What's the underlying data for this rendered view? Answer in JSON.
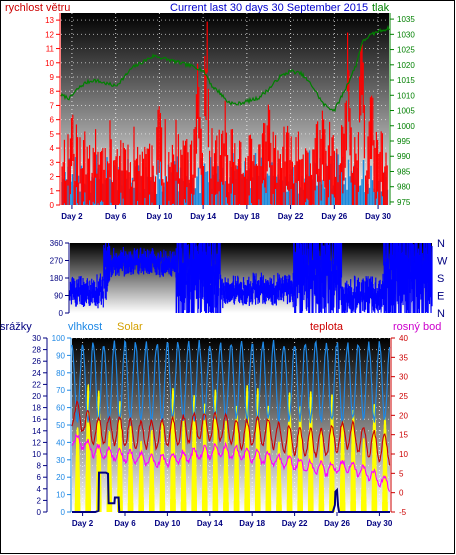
{
  "header": {
    "left_label": "rychlost větru",
    "title": "Current last 30 days 30 September 2015",
    "right_label": "tlak"
  },
  "colors": {
    "wind": "#ff0000",
    "gust": "#1e88d8",
    "pressure": "#008000",
    "direction": "#0000ff",
    "rain": "#000080",
    "humidity": "#1e88e5",
    "solar": "#ffff00",
    "temperature": "#cc0000",
    "dewpoint": "#ff00ff",
    "axis_text_dark": "#000080"
  },
  "chart_data": [
    {
      "type": "line",
      "name": "wind-pressure",
      "x_ticks": [
        "Day 2",
        "Day 6",
        "Day 10",
        "Day 14",
        "Day 18",
        "Day 22",
        "Day 26",
        "Day 30"
      ],
      "x_tick_days": [
        2,
        6,
        10,
        14,
        18,
        22,
        26,
        30
      ],
      "x_range_days": [
        1,
        31
      ],
      "left_axis": {
        "label": "rychlost větru",
        "ticks": [
          "0",
          "1",
          "2",
          "3",
          "4",
          "5",
          "6",
          "7",
          "8",
          "9",
          "10",
          "11",
          "12",
          "13"
        ],
        "ylim": [
          0,
          13.5
        ]
      },
      "right_axis": {
        "label": "tlak",
        "ticks": [
          "975",
          "980",
          "985",
          "990",
          "995",
          "1000",
          "1005",
          "1010",
          "1015",
          "1020",
          "1025",
          "1030",
          "1035"
        ],
        "ylim": [
          974,
          1037
        ]
      },
      "series": [
        {
          "name": "wind_speed",
          "axis": "left",
          "seed": 11,
          "base": 3.2,
          "amp": 2.5,
          "peaks": [
            [
              2,
              6.8
            ],
            [
              10,
              7.9
            ],
            [
              13.5,
              10.2
            ],
            [
              14.3,
              12.6
            ],
            [
              16,
              6.5
            ],
            [
              20,
              6.7
            ],
            [
              25,
              7.3
            ],
            [
              27.2,
              10.8
            ],
            [
              28.5,
              12.2
            ],
            [
              29.4,
              8.5
            ]
          ]
        },
        {
          "name": "gust",
          "axis": "left",
          "seed": 23,
          "base": 1.8,
          "amp": 1.6
        },
        {
          "name": "pressure",
          "axis": "right",
          "x": [
            1,
            1.8,
            2.5,
            3.2,
            4.0,
            5.0,
            6.0,
            6.8,
            7.5,
            8.5,
            9.5,
            10.5,
            11.5,
            12.5,
            13.5,
            14.0,
            14.4,
            14.8,
            15.5,
            16.2,
            17.0,
            18.0,
            19.0,
            20.0,
            21.0,
            22.0,
            23.0,
            24.0,
            25.0,
            26.0,
            27.0,
            28.0,
            28.5,
            29.0,
            29.5,
            30.0,
            31.0
          ],
          "values": [
            1010,
            1009,
            1012,
            1014,
            1015,
            1014,
            1013,
            1016,
            1019,
            1021,
            1023,
            1022,
            1021,
            1020,
            1019,
            1018,
            1016,
            1013,
            1011,
            1008,
            1007,
            1008,
            1009,
            1012,
            1016,
            1018,
            1017,
            1013,
            1007,
            1005,
            1012,
            1020,
            1027,
            1029,
            1030,
            1031,
            1032
          ]
        }
      ]
    },
    {
      "type": "line",
      "name": "wind-direction",
      "x_range_days": [
        1,
        31
      ],
      "left_axis": {
        "ticks": [
          "0",
          "90",
          "180",
          "270",
          "360"
        ],
        "ylim": [
          0,
          360
        ]
      },
      "right_axis": {
        "ticks": [
          "N",
          "W",
          "S",
          "E",
          "N"
        ]
      },
      "series": [
        {
          "name": "direction",
          "segments": [
            [
              1,
              3.8,
              110,
              40
            ],
            [
              3.8,
              4.3,
              240,
              80
            ],
            [
              4.3,
              9.8,
              260,
              35
            ],
            [
              9.8,
              13.5,
              180,
              140
            ],
            [
              13.5,
              19.5,
              120,
              40
            ],
            [
              19.5,
              23.5,
              200,
              130
            ],
            [
              23.5,
              27.0,
              90,
              50
            ],
            [
              27.0,
              31.0,
              200,
              150
            ]
          ]
        }
      ]
    },
    {
      "type": "line",
      "name": "rain-humidity-solar-temp",
      "x_ticks": [
        "Day 2",
        "Day 6",
        "Day 10",
        "Day 14",
        "Day 18",
        "Day 22",
        "Day 26",
        "Day 30"
      ],
      "x_tick_days": [
        2,
        6,
        10,
        14,
        18,
        22,
        26,
        30
      ],
      "x_range_days": [
        1,
        31
      ],
      "left_labels": [
        "srážky",
        "vlhkost",
        "Solar"
      ],
      "right_labels": [
        "teplota",
        "rosný bod"
      ],
      "rain_axis": {
        "label": "srážky",
        "ticks": [
          "0",
          "2",
          "4",
          "6",
          "8",
          "10",
          "12",
          "14",
          "16",
          "18",
          "20",
          "22",
          "24",
          "26",
          "28",
          "30"
        ],
        "ylim": [
          0,
          30
        ]
      },
      "humidity_axis": {
        "label": "vlhkost",
        "ticks": [
          "0",
          "10",
          "20",
          "30",
          "40",
          "50",
          "60",
          "70",
          "80",
          "90",
          "100"
        ],
        "ylim": [
          0,
          100
        ]
      },
      "temp_axis": {
        "label": "teplota",
        "ticks": [
          "-5",
          "0",
          "5",
          "10",
          "15",
          "20",
          "25",
          "30",
          "35",
          "40"
        ],
        "ylim": [
          -5,
          40
        ]
      },
      "series": [
        {
          "name": "humidity",
          "axis": "humidity",
          "min": 38,
          "max": 97
        },
        {
          "name": "solar",
          "axis": "rain",
          "max": 22
        },
        {
          "name": "temperature",
          "axis": "temp",
          "x": [
            1,
            2,
            3,
            5,
            7,
            9,
            11,
            13,
            15,
            17,
            19,
            21,
            23,
            25,
            27,
            29,
            31
          ],
          "day_mean": [
            21,
            19,
            16,
            16,
            15,
            15,
            16,
            17,
            17,
            15,
            16,
            14,
            13,
            13,
            15,
            13,
            11
          ],
          "day_amp": 3.5
        },
        {
          "name": "dewpoint",
          "axis": "temp",
          "x": [
            1,
            2,
            3,
            5,
            7,
            9,
            11,
            13,
            15,
            17,
            19,
            21,
            23,
            25,
            27,
            29,
            31
          ],
          "day_mean": [
            14,
            13,
            11,
            10,
            9,
            8,
            9,
            10,
            11,
            10,
            9,
            8,
            7,
            6,
            7,
            5,
            2
          ],
          "day_amp": 1.5
        },
        {
          "name": "rain",
          "axis": "rain",
          "x": [
            1.0,
            3.2,
            3.5,
            3.55,
            4.2,
            4.4,
            4.45,
            5.0,
            5.05,
            5.4,
            5.45,
            9.0,
            25.6,
            25.8,
            25.85,
            26.0,
            26.1,
            26.2,
            31.0
          ],
          "values": [
            0.0,
            0.0,
            0.2,
            6.8,
            6.8,
            6.6,
            1.5,
            1.5,
            2.5,
            2.5,
            0.0,
            0.0,
            0.0,
            1.2,
            3.5,
            3.8,
            1.0,
            0.0,
            0.0
          ]
        }
      ]
    }
  ]
}
